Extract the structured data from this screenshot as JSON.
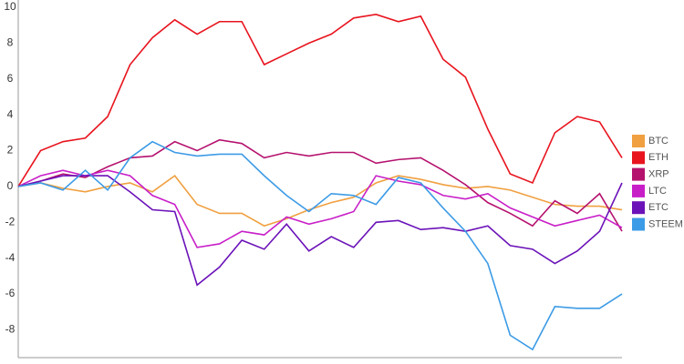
{
  "chart_data": {
    "type": "line",
    "categories": [
      null,
      null,
      null,
      null,
      null,
      null,
      null,
      null,
      null,
      null,
      null,
      null,
      null,
      null,
      null,
      null,
      null,
      null,
      null,
      null,
      null,
      null,
      null,
      null,
      null,
      null,
      null,
      null
    ],
    "ylim": [
      -9.5,
      10
    ],
    "yticks": [
      -8,
      -6,
      -4,
      -2,
      0,
      2,
      4,
      6,
      8,
      10
    ],
    "grid": false,
    "legend": "right",
    "series": [
      {
        "name": "BTC",
        "color": "#f0a040",
        "values": [
          0,
          0.2,
          -0.1,
          -0.3,
          0,
          0.2,
          -0.3,
          0.6,
          -1,
          -1.5,
          -1.5,
          -2.2,
          -1.8,
          -1.3,
          -0.9,
          -0.6,
          0.2,
          0.6,
          0.4,
          0.1,
          -0.1,
          0,
          -0.2,
          -0.6,
          -1,
          -1.1,
          -1.1,
          -1.3
        ]
      },
      {
        "name": "ETH",
        "color": "#e8141e",
        "values": [
          0,
          2,
          2.5,
          2.7,
          3.9,
          6.8,
          8.3,
          9.3,
          8.5,
          9.2,
          9.2,
          6.8,
          7.4,
          8.0,
          8.5,
          9.4,
          9.6,
          9.2,
          9.5,
          7.1,
          6.1,
          3.2,
          0.7,
          0.2,
          3.0,
          3.9,
          3.6,
          1.6
        ]
      },
      {
        "name": "XRP",
        "color": "#b5126e",
        "values": [
          0,
          0.3,
          0.7,
          0.5,
          1.1,
          1.6,
          1.7,
          2.5,
          2.0,
          2.6,
          2.4,
          1.6,
          1.9,
          1.7,
          1.9,
          1.9,
          1.3,
          1.5,
          1.6,
          0.9,
          0.1,
          -0.9,
          -1.5,
          -2.2,
          -0.8,
          -1.5,
          -0.4,
          -2.5
        ]
      },
      {
        "name": "LTC",
        "color": "#c81ec8",
        "values": [
          0,
          0.6,
          0.9,
          0.6,
          0.9,
          0.6,
          -0.5,
          -1,
          -3.4,
          -3.2,
          -2.5,
          -2.7,
          -1.7,
          -2.1,
          -1.8,
          -1.4,
          0.6,
          0.3,
          0.1,
          -0.5,
          -0.7,
          -0.4,
          -1.2,
          -1.7,
          -2.2,
          -1.9,
          -1.6,
          -2.3
        ]
      },
      {
        "name": "ETC",
        "color": "#6b12b8",
        "values": [
          0,
          0.3,
          0.6,
          0.6,
          0.6,
          -0.3,
          -1.3,
          -1.4,
          -5.5,
          -4.5,
          -3,
          -3.5,
          -2.1,
          -3.6,
          -2.8,
          -3.4,
          -2,
          -1.9,
          -2.4,
          -2.3,
          -2.5,
          -2.2,
          -3.3,
          -3.5,
          -4.3,
          -3.6,
          -2.5,
          0.2
        ]
      },
      {
        "name": "STEEM",
        "color": "#3c9be6",
        "values": [
          0,
          0.2,
          -0.2,
          0.9,
          -0.2,
          1.6,
          2.5,
          1.9,
          1.7,
          1.8,
          1.8,
          0.6,
          -0.5,
          -1.4,
          -0.4,
          -0.5,
          -1,
          0.5,
          0.2,
          -1.2,
          -2.5,
          -4.3,
          -8.3,
          -9.1,
          -6.7,
          -6.8,
          -6.8,
          -6.0
        ]
      }
    ]
  }
}
